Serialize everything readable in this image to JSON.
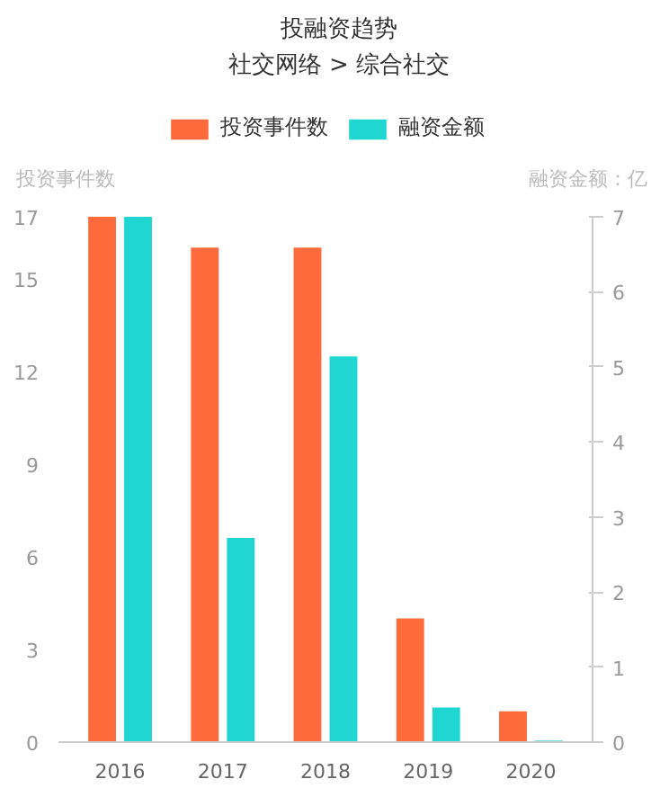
{
  "chart_data": {
    "type": "bar",
    "title": "投融资趋势",
    "subtitle": "社交网络 > 综合社交",
    "ylabel": "投资事件数",
    "y2label": "融资金额：亿",
    "categories": [
      "2016",
      "2017",
      "2018",
      "2019",
      "2020"
    ],
    "series": [
      {
        "name": "投资事件数",
        "color": "#ff6a3d",
        "values": [
          17,
          16,
          16,
          4,
          1
        ]
      },
      {
        "name": "融资金额",
        "color": "#1fd6d0",
        "values": [
          7,
          2.72,
          5.14,
          0.46,
          0.02
        ],
        "axis": "y2"
      }
    ],
    "ylim": [
      0,
      17
    ],
    "yticks": [
      0,
      3,
      6,
      9,
      12,
      15,
      17
    ],
    "y2lim": [
      0,
      7
    ],
    "y2ticks": [
      0,
      1,
      2,
      3,
      4,
      5,
      6,
      7
    ],
    "legend": "top",
    "grid": false
  }
}
